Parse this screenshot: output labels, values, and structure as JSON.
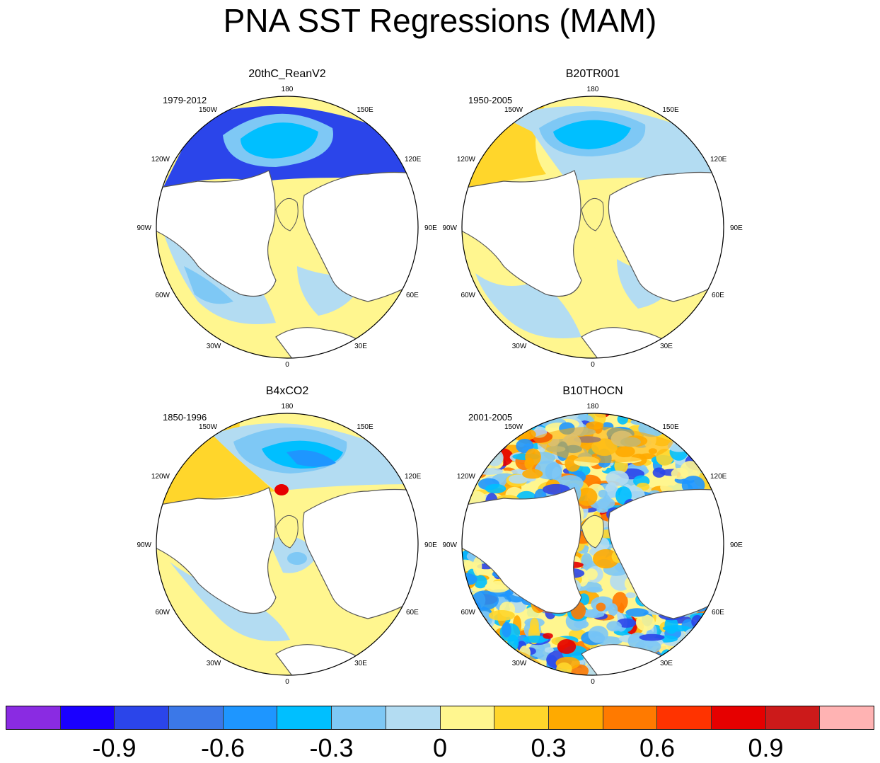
{
  "title": "PNA SST Regressions (MAM)",
  "panels": [
    {
      "name": "20thC_ReanV2",
      "period": "1979-2012",
      "style": "smooth"
    },
    {
      "name": "B20TR001",
      "period": "1950-2005",
      "style": "smooth"
    },
    {
      "name": "B4xCO2",
      "period": "1850-1996",
      "style": "smooth"
    },
    {
      "name": "B10THOCN",
      "period": "2001-2005",
      "style": "noisy"
    }
  ],
  "longitude_labels": [
    "180",
    "150E",
    "120E",
    "90E",
    "60E",
    "30E",
    "0",
    "30W",
    "60W",
    "90W",
    "120W",
    "150W"
  ],
  "colorbar": {
    "colors": [
      "#8a2be2",
      "#1a00ff",
      "#2b45ea",
      "#3b78e8",
      "#1e96ff",
      "#00bfff",
      "#7ec8f5",
      "#b3dcf2",
      "#fff68f",
      "#ffd62b",
      "#ffaa00",
      "#ff7a00",
      "#ff3300",
      "#e60000",
      "#cc1a1a",
      "#ffb3b3"
    ],
    "labels": [
      "-0.9",
      "-0.6",
      "-0.3",
      "0",
      "0.3",
      "0.6",
      "0.9"
    ]
  }
}
